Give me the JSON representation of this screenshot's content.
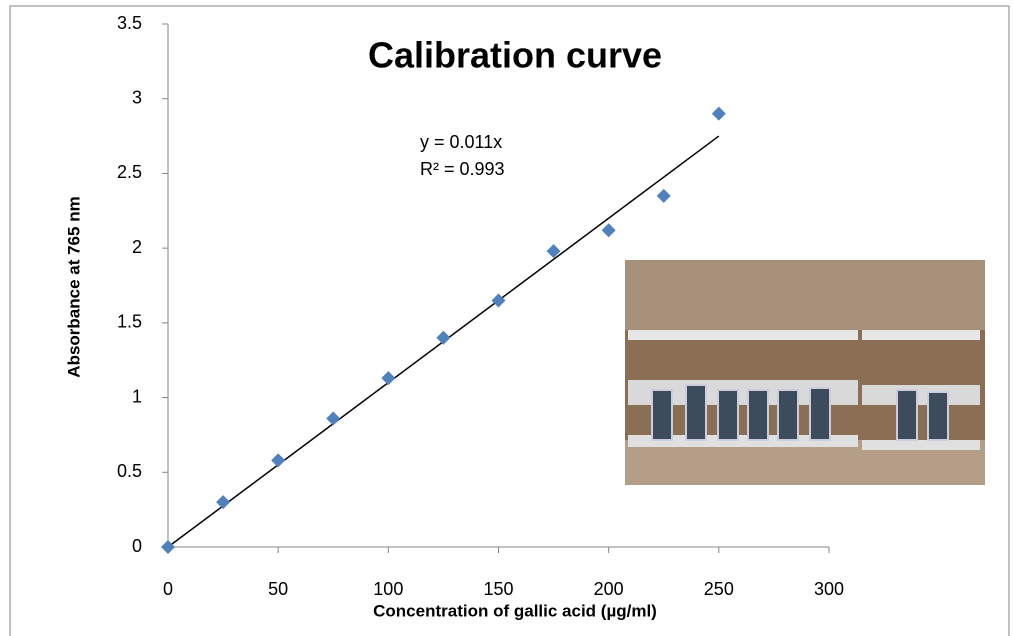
{
  "chart_data": {
    "type": "scatter",
    "title": "Calibration curve",
    "x_label": "Concentration of gallic acid (µg/ml)",
    "y_label": "Absorbance at 765 nm",
    "x": [
      0,
      25,
      50,
      75,
      100,
      125,
      150,
      175,
      200,
      225,
      250
    ],
    "series": [
      {
        "color": "#4f81bd",
        "values": [
          0,
          0.3,
          0.58,
          0.86,
          1.13,
          1.4,
          1.65,
          1.98,
          2.12,
          2.35,
          2.9
        ]
      }
    ],
    "trendline": {
      "slope": 0.011,
      "equation": "y = 0.011x",
      "r_squared": "R² = 0.993"
    },
    "xlim": [
      0,
      300
    ],
    "xticks": [
      0,
      50,
      100,
      150,
      200,
      250,
      300
    ],
    "ylim": [
      0,
      3.5
    ],
    "yticks": [
      0,
      0.5,
      1,
      1.5,
      2,
      2.5,
      3,
      3.5
    ],
    "grid": false
  }
}
